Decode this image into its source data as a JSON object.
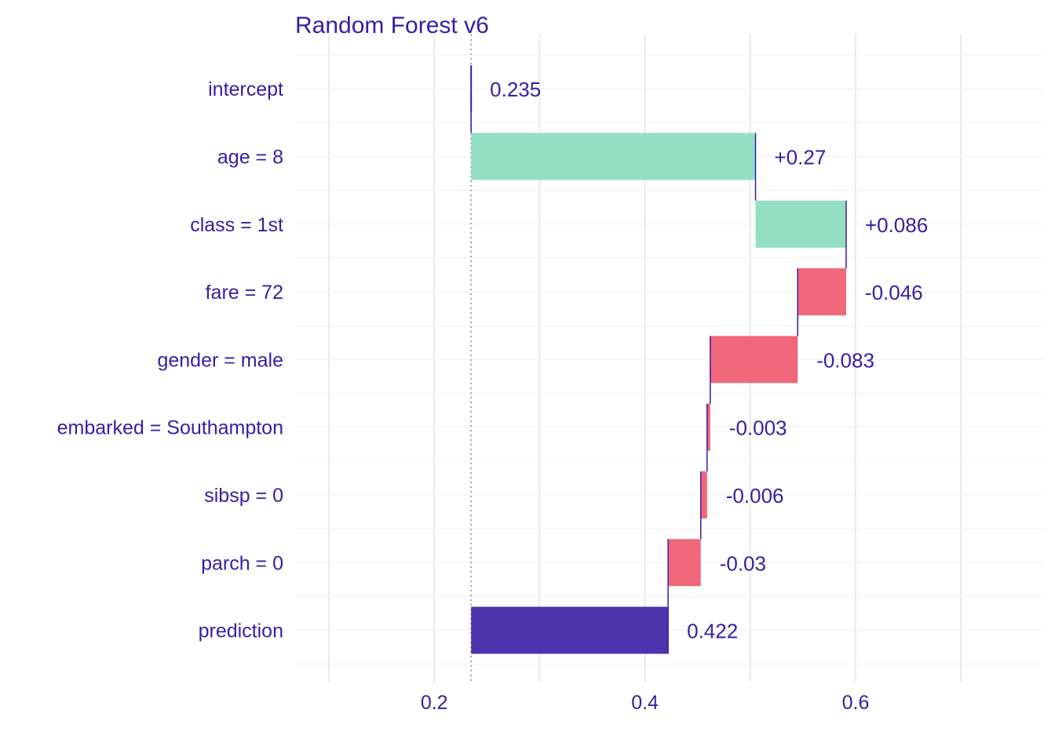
{
  "colors": {
    "text": "#371ea3",
    "positive": "#8bdcbe",
    "negative": "#f05a71",
    "prediction": "#371ea3",
    "grid_major": "#e3e3e3",
    "grid_minor": "#f0f0f0",
    "baseline": "#a0a0a0",
    "connector": "#371ea3"
  },
  "chart_data": {
    "type": "bar",
    "subtype": "waterfall (break-down)",
    "title": "Random Forest v6",
    "xlim": [
      0.1,
      0.75
    ],
    "x_ticks": [
      0.2,
      0.4,
      0.6
    ],
    "x_tick_labels": [
      "0.2",
      "0.4",
      "0.6"
    ],
    "baseline": 0.235,
    "grid": true,
    "bars": [
      {
        "label": "intercept",
        "start": 0.235,
        "end": 0.235,
        "value_label": "0.235",
        "kind": "intercept"
      },
      {
        "label": "age = 8",
        "start": 0.235,
        "end": 0.505,
        "value_label": "+0.27",
        "kind": "positive"
      },
      {
        "label": "class = 1st",
        "start": 0.505,
        "end": 0.591,
        "value_label": "+0.086",
        "kind": "positive"
      },
      {
        "label": "fare = 72",
        "start": 0.591,
        "end": 0.545,
        "value_label": "-0.046",
        "kind": "negative"
      },
      {
        "label": "gender = male",
        "start": 0.545,
        "end": 0.462,
        "value_label": "-0.083",
        "kind": "negative"
      },
      {
        "label": "embarked = Southampton",
        "start": 0.462,
        "end": 0.459,
        "value_label": "-0.003",
        "kind": "negative"
      },
      {
        "label": "sibsp = 0",
        "start": 0.459,
        "end": 0.453,
        "value_label": "-0.006",
        "kind": "negative"
      },
      {
        "label": "parch = 0",
        "start": 0.453,
        "end": 0.422,
        "value_label": "-0.03",
        "kind": "negative"
      },
      {
        "label": "prediction",
        "start": 0.235,
        "end": 0.422,
        "value_label": "0.422",
        "kind": "prediction"
      }
    ]
  }
}
